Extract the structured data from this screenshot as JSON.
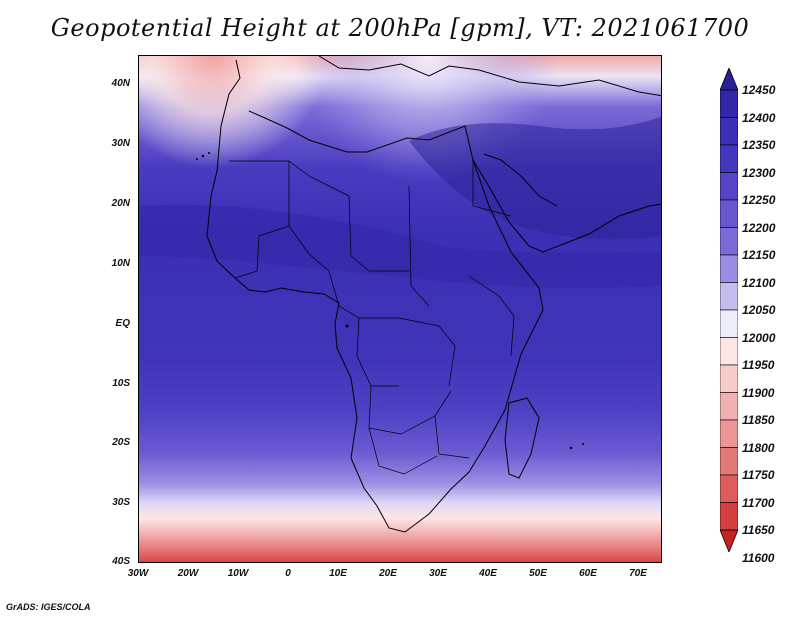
{
  "title": "Geopotential Height at 200hPa [gpm], VT: 2021061700",
  "footer": "GrADS: IGES/COLA",
  "lat_labels": [
    "40N",
    "30N",
    "20N",
    "10N",
    "EQ",
    "10S",
    "20S",
    "30S",
    "40S"
  ],
  "lon_labels": [
    "30W",
    "20W",
    "10W",
    "0",
    "10E",
    "20E",
    "30E",
    "40E",
    "50E",
    "60E",
    "70E"
  ],
  "colorbar": {
    "levels": [
      "12450",
      "12400",
      "12350",
      "12300",
      "12250",
      "12200",
      "12150",
      "12100",
      "12050",
      "12000",
      "11950",
      "11900",
      "11850",
      "11800",
      "11750",
      "11700",
      "11650",
      "11600"
    ],
    "colors": [
      "#2a1f96",
      "#3326a8",
      "#3b2fb3",
      "#4537bd",
      "#5444c8",
      "#6656cf",
      "#7b6bd8",
      "#9a8de3",
      "#c5bdee",
      "#ececfb",
      "#fde6e4",
      "#f8cccb",
      "#f2b1b1",
      "#ec9595",
      "#e57979",
      "#de5c5c",
      "#d53e3e",
      "#c72222"
    ]
  },
  "map": {
    "region": "Africa",
    "field": "200hPa geopotential height"
  }
}
